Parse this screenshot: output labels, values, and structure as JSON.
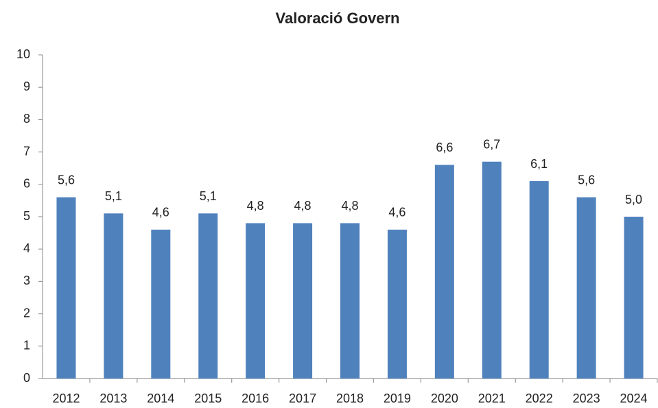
{
  "chart_data": {
    "type": "bar",
    "title": "Valoració Govern",
    "categories": [
      "2012",
      "2013",
      "2014",
      "2015",
      "2016",
      "2017",
      "2018",
      "2019",
      "2020",
      "2021",
      "2022",
      "2023",
      "2024"
    ],
    "values": [
      5.6,
      5.1,
      4.6,
      5.1,
      4.8,
      4.8,
      4.8,
      4.6,
      6.6,
      6.7,
      6.1,
      5.6,
      5.0
    ],
    "value_labels": [
      "5,6",
      "5,1",
      "4,6",
      "5,1",
      "4,8",
      "4,8",
      "4,8",
      "4,6",
      "6,6",
      "6,7",
      "6,1",
      "5,6",
      "5,0"
    ],
    "color": "#4f81bd",
    "ylim": [
      0,
      10
    ],
    "yticks": [
      0,
      1,
      2,
      3,
      4,
      5,
      6,
      7,
      8,
      9,
      10
    ],
    "grid": false
  }
}
